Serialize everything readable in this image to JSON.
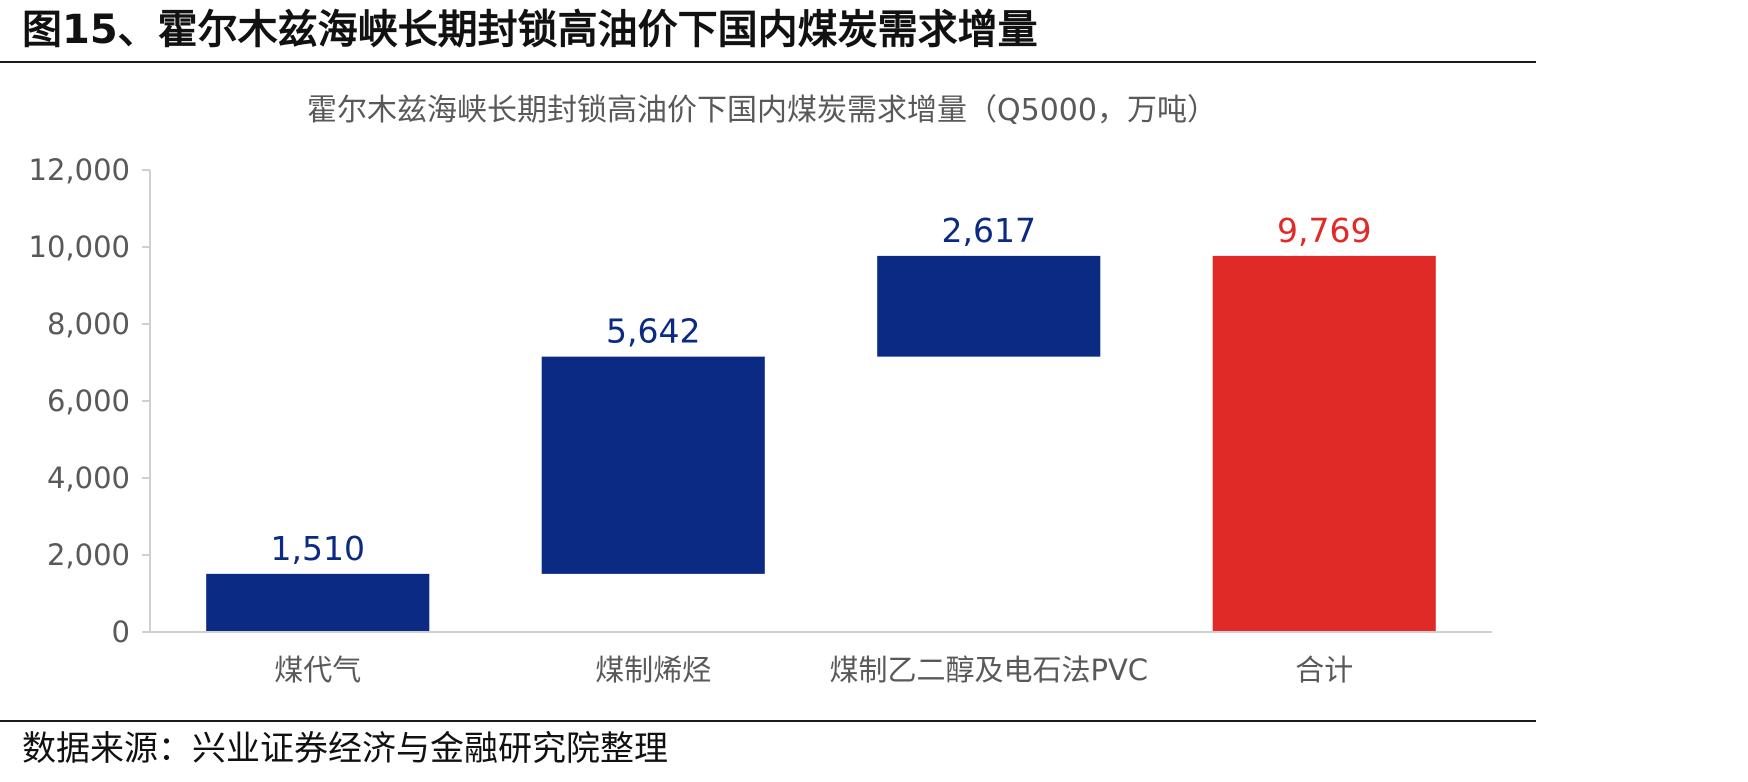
{
  "figure_title": "图15、霍尔木兹海峡长期封锁高油价下国内煤炭需求增量",
  "source_note": "数据来源：兴业证券经济与金融研究院整理",
  "colors": {
    "increase": "#0b2a83",
    "total": "#e02a27",
    "axis": "#d0d0d0",
    "text": "#595959"
  },
  "chart_data": {
    "type": "bar",
    "subtype": "waterfall",
    "title": "霍尔木兹海峡长期封锁高油价下国内煤炭需求增量（Q5000，万吨）",
    "xlabel": "",
    "ylabel": "",
    "ylim": [
      0,
      12000
    ],
    "yticks": [
      0,
      2000,
      4000,
      6000,
      8000,
      10000,
      12000
    ],
    "ytick_labels": [
      "0",
      "2,000",
      "4,000",
      "6,000",
      "8,000",
      "10,000",
      "12,000"
    ],
    "grid": false,
    "legend": "none",
    "categories": [
      "煤代气",
      "煤制烯烃",
      "煤制乙二醇及电石法PVC",
      "合计"
    ],
    "values": [
      1510,
      5642,
      2617,
      9769
    ],
    "value_labels": [
      "1,510",
      "5,642",
      "2,617",
      "9,769"
    ],
    "bar_kinds": [
      "increase",
      "increase",
      "increase",
      "total"
    ]
  }
}
